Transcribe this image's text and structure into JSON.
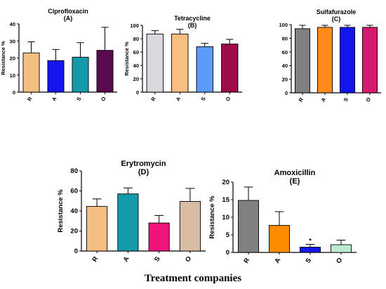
{
  "figure": {
    "xlabel": "Treatment companies"
  },
  "chart_data": [
    {
      "type": "bar",
      "title": "Ciprofloxacin",
      "subtitle": "(A)",
      "ylabel": "Resistance %",
      "ylim": [
        0,
        40
      ],
      "yticks": [
        0,
        10,
        20,
        30,
        40
      ],
      "categories": [
        "R",
        "A",
        "S",
        "O"
      ],
      "values": [
        23,
        18.5,
        20.5,
        24.5
      ],
      "errors": [
        6.5,
        6.5,
        8.5,
        13.5
      ],
      "colors": [
        "#F5BE82",
        "#1515F0",
        "#159AAA",
        "#5A0A4E"
      ],
      "annotations": [
        "",
        "",
        "",
        ""
      ]
    },
    {
      "type": "bar",
      "title": "Tetracycline",
      "subtitle": "(B)",
      "ylabel": "Resistance %",
      "ylim": [
        0,
        100
      ],
      "yticks": [
        0,
        20,
        40,
        60,
        80,
        100
      ],
      "categories": [
        "R",
        "A",
        "S",
        "O"
      ],
      "values": [
        87,
        87,
        68,
        72
      ],
      "errors": [
        5,
        7,
        5,
        7
      ],
      "colors": [
        "#D8D8DE",
        "#F8BE82",
        "#5A9CF8",
        "#9E0A4A"
      ],
      "annotations": [
        "",
        "",
        "",
        ""
      ]
    },
    {
      "type": "bar",
      "title": "Sulfafurazole",
      "subtitle": "(C)",
      "ylabel": "",
      "ylim": [
        0,
        100
      ],
      "yticks": [
        0,
        20,
        40,
        60,
        80,
        100
      ],
      "categories": [
        "R",
        "A",
        "S",
        "O"
      ],
      "values": [
        94,
        96,
        96,
        96
      ],
      "errors": [
        5,
        3,
        3,
        3
      ],
      "colors": [
        "#808080",
        "#FF8C1A",
        "#1515F0",
        "#D61A6E"
      ],
      "annotations": [
        "",
        "",
        "",
        ""
      ]
    },
    {
      "type": "bar",
      "title": "Erytromycin",
      "subtitle": "(D)",
      "ylabel": "Resistance %",
      "ylim": [
        0,
        80
      ],
      "yticks": [
        0,
        20,
        40,
        60,
        80
      ],
      "categories": [
        "R",
        "A",
        "S",
        "O"
      ],
      "values": [
        44.5,
        57,
        28,
        49.5
      ],
      "errors": [
        7.5,
        6,
        7.5,
        13
      ],
      "colors": [
        "#F5BE82",
        "#159AAA",
        "#F0147A",
        "#D8BCA4"
      ],
      "annotations": [
        "",
        "",
        "",
        ""
      ]
    },
    {
      "type": "bar",
      "title": "Amoxicillin",
      "subtitle": "(E)",
      "ylabel": "Resistance %",
      "ylim": [
        0,
        20
      ],
      "yticks": [
        0,
        5,
        10,
        15,
        20
      ],
      "categories": [
        "R",
        "A",
        "S",
        "O"
      ],
      "values": [
        14.8,
        7.7,
        1.5,
        2.2
      ],
      "errors": [
        3.8,
        3.9,
        0.8,
        1.3
      ],
      "colors": [
        "#808080",
        "#FF8C00",
        "#1515F0",
        "#BCEBD2"
      ],
      "annotations": [
        "",
        "",
        "*",
        ""
      ]
    }
  ]
}
